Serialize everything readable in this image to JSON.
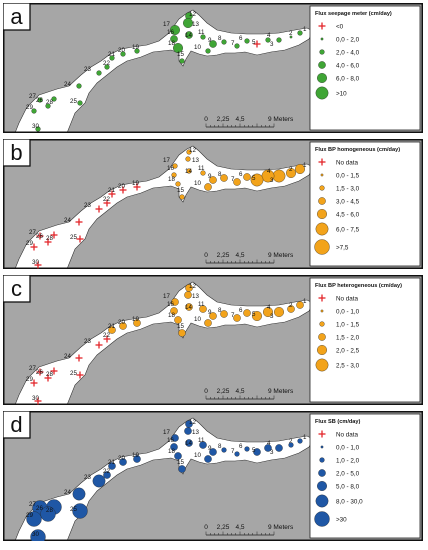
{
  "colors": {
    "land": "#a6a6a6",
    "water": "#ffffff",
    "green": "#3fa535",
    "orange": "#f2a31b",
    "blue": "#1f57a5",
    "nodata": "#e3262b"
  },
  "scalebar": {
    "ticks": [
      "0",
      "2,25",
      "4,5",
      "9 Meters"
    ]
  },
  "site_labels": [
    "1",
    "2",
    "3",
    "4",
    "5",
    "6",
    "7",
    "8",
    "9",
    "10",
    "11",
    "12",
    "13",
    "14",
    "15",
    "16",
    "17",
    "18",
    "19",
    "20",
    "21",
    "22",
    "23",
    "24",
    "25",
    "26",
    "27",
    "28",
    "29",
    "30"
  ],
  "panels": [
    {
      "letter": "a",
      "color_key": "green",
      "legend_title": "Flux seepage meter (cm/day)",
      "legend": [
        {
          "label": "<0",
          "kind": "cross",
          "size": 0
        },
        {
          "label": "0,0 - 2,0",
          "kind": "dot",
          "size": 1
        },
        {
          "label": "2,0 - 4,0",
          "kind": "dot",
          "size": 2
        },
        {
          "label": "4,0 - 6,0",
          "kind": "dot",
          "size": 3
        },
        {
          "label": "6,0 - 8,0",
          "kind": "dot",
          "size": 4
        },
        {
          "label": ">10",
          "kind": "dot",
          "size": 5
        }
      ],
      "sites": [
        2,
        1,
        2,
        2,
        0,
        2,
        2,
        2,
        3,
        2,
        2,
        3,
        4,
        3,
        2,
        3,
        4,
        4,
        2,
        2,
        2,
        2,
        2,
        2,
        2,
        2,
        2,
        2,
        2,
        2
      ]
    },
    {
      "letter": "b",
      "color_key": "orange",
      "legend_title": "Flux BP homogeneous (cm/day)",
      "legend": [
        {
          "label": "No data",
          "kind": "cross",
          "size": 0
        },
        {
          "label": "0,0 - 1,5",
          "kind": "dot",
          "size": 1
        },
        {
          "label": "1,5 - 3,0",
          "kind": "dot",
          "size": 2
        },
        {
          "label": "3,0 - 4,5",
          "kind": "dot",
          "size": 3
        },
        {
          "label": "4,5 - 6,0",
          "kind": "dot",
          "size": 4
        },
        {
          "label": "6,0 - 7,5",
          "kind": "dot",
          "size": 5
        },
        {
          "label": ">7,5",
          "kind": "dot",
          "size": 6
        }
      ],
      "sites": [
        4,
        4,
        5,
        5,
        5,
        3,
        3,
        3,
        3,
        3,
        2,
        2,
        2,
        2,
        2,
        2,
        2,
        2,
        0,
        0,
        0,
        0,
        0,
        0,
        0,
        0,
        0,
        0,
        0,
        0
      ]
    },
    {
      "letter": "c",
      "color_key": "orange",
      "legend_title": "Flux BP heterogeneous (cm/day)",
      "legend": [
        {
          "label": "No data",
          "kind": "cross",
          "size": 0
        },
        {
          "label": "0,0 - 1,0",
          "kind": "dot",
          "size": 1
        },
        {
          "label": "1,0 - 1,5",
          "kind": "dot",
          "size": 2
        },
        {
          "label": "1,5 - 2,0",
          "kind": "dot",
          "size": 3
        },
        {
          "label": "2,0 - 2,5",
          "kind": "dot",
          "size": 4
        },
        {
          "label": "2,5 - 3,0",
          "kind": "dot",
          "size": 5
        }
      ],
      "sites": [
        3,
        3,
        4,
        4,
        4,
        3,
        3,
        3,
        3,
        3,
        3,
        3,
        3,
        3,
        3,
        3,
        3,
        3,
        3,
        3,
        3,
        0,
        0,
        0,
        0,
        0,
        0,
        0,
        0,
        0
      ]
    },
    {
      "letter": "d",
      "color_key": "blue",
      "legend_title": "Flux SB (cm/day)",
      "legend": [
        {
          "label": "No data",
          "kind": "cross",
          "size": 0
        },
        {
          "label": "0,0 - 1,0",
          "kind": "dot",
          "size": 1
        },
        {
          "label": "1,0 - 2,0",
          "kind": "dot",
          "size": 2
        },
        {
          "label": "2,0 - 5,0",
          "kind": "dot",
          "size": 3
        },
        {
          "label": "5,0 - 8,0",
          "kind": "dot",
          "size": 4
        },
        {
          "label": "8,0 - 30,0",
          "kind": "dot",
          "size": 5
        },
        {
          "label": ">30",
          "kind": "dot",
          "size": 6
        }
      ],
      "sites": [
        2,
        2,
        3,
        3,
        3,
        2,
        2,
        2,
        3,
        3,
        3,
        3,
        3,
        3,
        3,
        3,
        3,
        3,
        3,
        3,
        3,
        3,
        5,
        5,
        6,
        6,
        6,
        6,
        6,
        6
      ]
    }
  ]
}
